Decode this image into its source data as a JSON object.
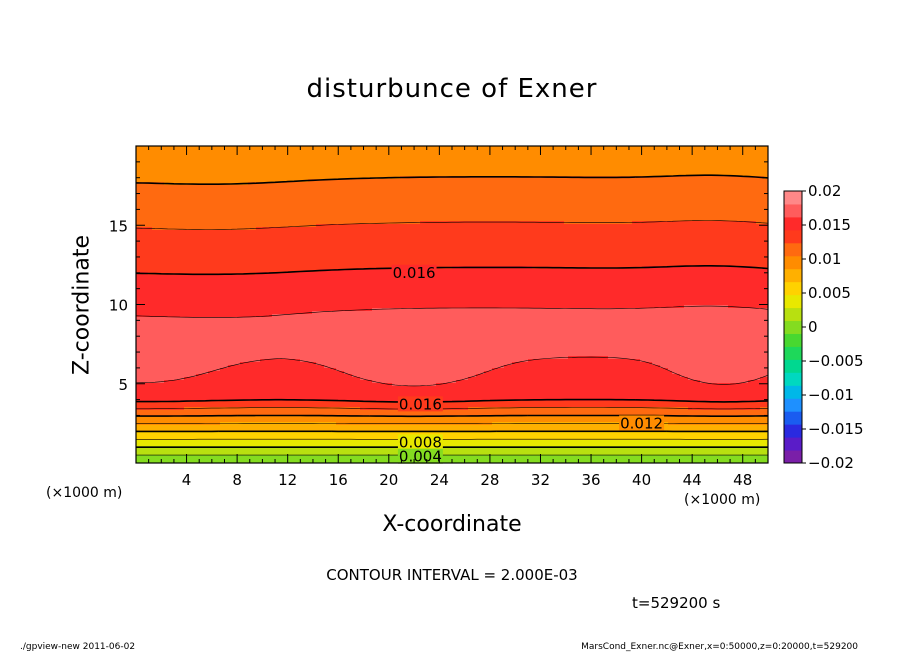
{
  "chart_data": {
    "type": "heatmap",
    "title": "disturbunce of Exner",
    "xlabel": "X-coordinate",
    "ylabel": "Z-coordinate",
    "x_unit_label": "(×1000 m)",
    "xlim": [
      0,
      50
    ],
    "ylim": [
      0,
      20
    ],
    "x_ticks": [
      4,
      8,
      12,
      16,
      20,
      24,
      28,
      32,
      36,
      40,
      44,
      48
    ],
    "y_ticks": [
      5,
      10,
      15
    ],
    "colorbar": {
      "levels": [
        -0.02,
        -0.018,
        -0.016,
        -0.014,
        -0.012,
        -0.01,
        -0.008,
        -0.006,
        -0.004,
        -0.002,
        0,
        0.002,
        0.004,
        0.006,
        0.008,
        0.01,
        0.012,
        0.014,
        0.016,
        0.018,
        0.02
      ],
      "tick_labels": [
        "0.02",
        "0.015",
        "0.01",
        "0.005",
        "0",
        "−0.005",
        "−0.01",
        "−0.015",
        "−0.02"
      ],
      "colors": [
        "#7a1fa8",
        "#5a1cc8",
        "#2a2ae0",
        "#1a5cf0",
        "#1e90ff",
        "#00b8e8",
        "#00d8c0",
        "#00d890",
        "#1ed85a",
        "#48d830",
        "#84dc20",
        "#b8e010",
        "#e8e800",
        "#ffd200",
        "#ffb000",
        "#ff8c00",
        "#ff6a10",
        "#ff3a1c",
        "#ff2a2a",
        "#ff5c5c",
        "#ff8888"
      ]
    },
    "contour_labels": [
      {
        "text": "0.016",
        "x": 22,
        "z": 12.0
      },
      {
        "text": "0.016",
        "x": 22.5,
        "z": 3.7
      },
      {
        "text": "0.012",
        "x": 40,
        "z": 2.5
      },
      {
        "text": "0.008",
        "x": 22.5,
        "z": 1.3
      },
      {
        "text": "0.004",
        "x": 22.5,
        "z": 0.4
      }
    ],
    "contour_interval_text": "CONTOUR INTERVAL = 2.000E-03",
    "time_text": "t=529200 s"
  },
  "footer": {
    "left": "./gpview-new   2011-06-02",
    "right": "MarsCond_Exner.nc@Exner,x=0:50000,z=0:20000,t=529200"
  }
}
